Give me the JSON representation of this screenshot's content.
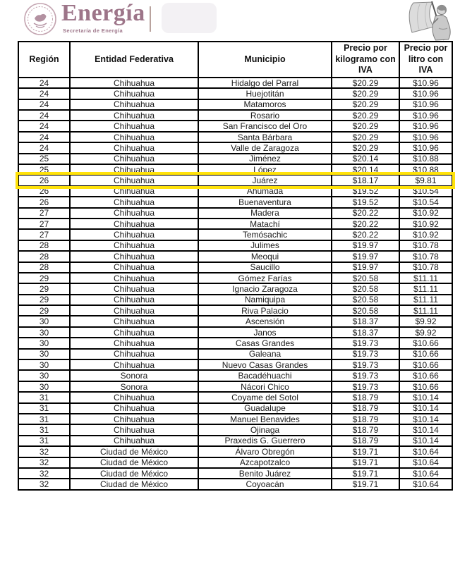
{
  "header": {
    "agency_wordmark": "Energía",
    "agency_subtitle": "Secretaría de Energía",
    "seal_icon": "mexican-eagle-seal-icon",
    "flag_illustration": "woman-with-mexican-flag-illustration"
  },
  "colors": {
    "brand_mauve": "#9d7589",
    "seal_mauve": "#bb98a6",
    "highlight_yellow": "#ffe20a",
    "table_border": "#000000"
  },
  "table": {
    "columns": [
      "Región",
      "Entidad Federativa",
      "Municipio",
      "Precio por kilogramo con IVA",
      "Precio por litro con IVA"
    ],
    "highlighted_row_index": 9,
    "rows": [
      [
        "24",
        "Chihuahua",
        "Hidalgo del Parral",
        "$20.29",
        "$10.96"
      ],
      [
        "24",
        "Chihuahua",
        "Huejotitán",
        "$20.29",
        "$10.96"
      ],
      [
        "24",
        "Chihuahua",
        "Matamoros",
        "$20.29",
        "$10.96"
      ],
      [
        "24",
        "Chihuahua",
        "Rosario",
        "$20.29",
        "$10.96"
      ],
      [
        "24",
        "Chihuahua",
        "San Francisco del Oro",
        "$20.29",
        "$10.96"
      ],
      [
        "24",
        "Chihuahua",
        "Santa Bárbara",
        "$20.29",
        "$10.96"
      ],
      [
        "24",
        "Chihuahua",
        "Valle de Zaragoza",
        "$20.29",
        "$10.96"
      ],
      [
        "25",
        "Chihuahua",
        "Jiménez",
        "$20.14",
        "$10.88"
      ],
      [
        "25",
        "Chihuahua",
        "López",
        "$20.14",
        "$10.88"
      ],
      [
        "26",
        "Chihuahua",
        "Juárez",
        "$18.17",
        "$9.81"
      ],
      [
        "26",
        "Chihuahua",
        "Ahumada",
        "$19.52",
        "$10.54"
      ],
      [
        "26",
        "Chihuahua",
        "Buenaventura",
        "$19.52",
        "$10.54"
      ],
      [
        "27",
        "Chihuahua",
        "Madera",
        "$20.22",
        "$10.92"
      ],
      [
        "27",
        "Chihuahua",
        "Matachí",
        "$20.22",
        "$10.92"
      ],
      [
        "27",
        "Chihuahua",
        "Temósachic",
        "$20.22",
        "$10.92"
      ],
      [
        "28",
        "Chihuahua",
        "Julimes",
        "$19.97",
        "$10.78"
      ],
      [
        "28",
        "Chihuahua",
        "Meoqui",
        "$19.97",
        "$10.78"
      ],
      [
        "28",
        "Chihuahua",
        "Saucillo",
        "$19.97",
        "$10.78"
      ],
      [
        "29",
        "Chihuahua",
        "Gómez Farías",
        "$20.58",
        "$11.11"
      ],
      [
        "29",
        "Chihuahua",
        "Ignacio Zaragoza",
        "$20.58",
        "$11.11"
      ],
      [
        "29",
        "Chihuahua",
        "Namiquipa",
        "$20.58",
        "$11.11"
      ],
      [
        "29",
        "Chihuahua",
        "Riva Palacio",
        "$20.58",
        "$11.11"
      ],
      [
        "30",
        "Chihuahua",
        "Ascensión",
        "$18.37",
        "$9.92"
      ],
      [
        "30",
        "Chihuahua",
        "Janos",
        "$18.37",
        "$9.92"
      ],
      [
        "30",
        "Chihuahua",
        "Casas Grandes",
        "$19.73",
        "$10.66"
      ],
      [
        "30",
        "Chihuahua",
        "Galeana",
        "$19.73",
        "$10.66"
      ],
      [
        "30",
        "Chihuahua",
        "Nuevo Casas Grandes",
        "$19.73",
        "$10.66"
      ],
      [
        "30",
        "Sonora",
        "Bacadéhuachi",
        "$19.73",
        "$10.66"
      ],
      [
        "30",
        "Sonora",
        "Nácori Chico",
        "$19.73",
        "$10.66"
      ],
      [
        "31",
        "Chihuahua",
        "Coyame del Sotol",
        "$18.79",
        "$10.14"
      ],
      [
        "31",
        "Chihuahua",
        "Guadalupe",
        "$18.79",
        "$10.14"
      ],
      [
        "31",
        "Chihuahua",
        "Manuel Benavides",
        "$18.79",
        "$10.14"
      ],
      [
        "31",
        "Chihuahua",
        "Ojinaga",
        "$18.79",
        "$10.14"
      ],
      [
        "31",
        "Chihuahua",
        "Praxedis G. Guerrero",
        "$18.79",
        "$10.14"
      ],
      [
        "32",
        "Ciudad de México",
        "Álvaro Obregón",
        "$19.71",
        "$10.64"
      ],
      [
        "32",
        "Ciudad de México",
        "Azcapotzalco",
        "$19.71",
        "$10.64"
      ],
      [
        "32",
        "Ciudad de México",
        "Benito Juárez",
        "$19.71",
        "$10.64"
      ],
      [
        "32",
        "Ciudad de México",
        "Coyoacán",
        "$19.71",
        "$10.64"
      ]
    ]
  }
}
